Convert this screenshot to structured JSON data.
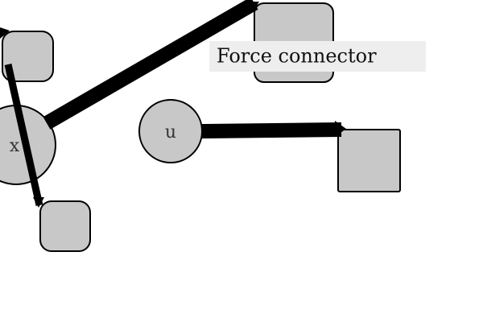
{
  "caption": "Force connector",
  "nodes": {
    "x": "x",
    "u": "u"
  },
  "colors": {
    "node_fill": "#c8c8c8",
    "node_stroke": "#000000",
    "edge": "#000000",
    "caption_bg": "#eeeeee"
  }
}
